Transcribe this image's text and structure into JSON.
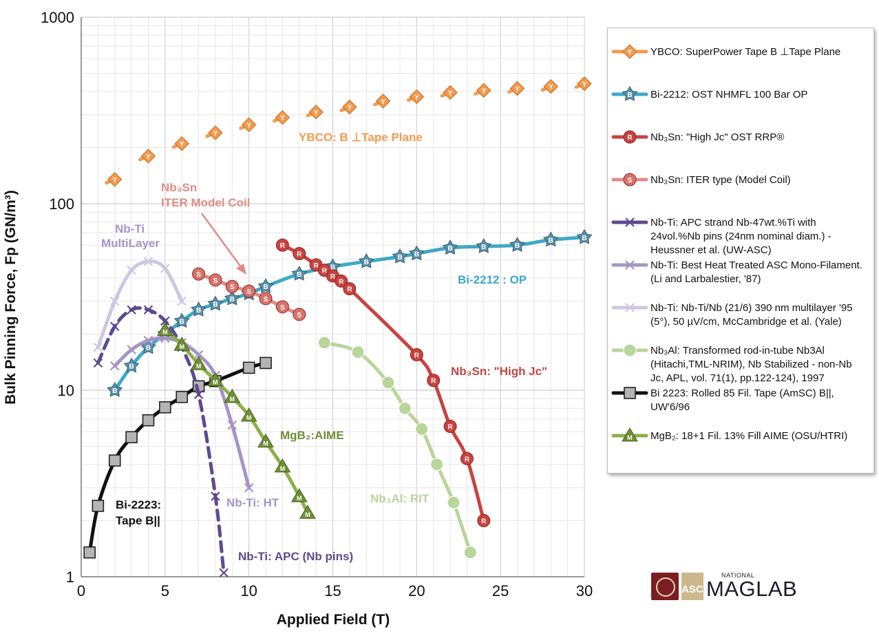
{
  "chart_data": {
    "type": "line",
    "ylabel": "Bulk Pinning Force, Fp (GN/m³)",
    "xlabel": "Applied Field (T)",
    "xlim": [
      0,
      30
    ],
    "ylim": [
      1,
      1000
    ],
    "y_scale": "log",
    "grid": true,
    "legend_position": "right",
    "x_ticks": [
      "0",
      "5",
      "10",
      "15",
      "20",
      "25",
      "30"
    ],
    "y_ticks": [
      "1",
      "10",
      "100",
      "1000"
    ],
    "series": [
      {
        "name": "YBCO: SuperPower Tape B ⊥Tape Plane",
        "color": "#f39a4e",
        "marker": "Y",
        "dashed": true,
        "x": [
          2,
          4,
          6,
          8,
          10,
          12,
          14,
          16,
          18,
          20,
          22,
          24,
          26,
          28,
          30
        ],
        "y": [
          135,
          180,
          210,
          240,
          265,
          290,
          310,
          330,
          355,
          375,
          395,
          405,
          415,
          425,
          440
        ]
      },
      {
        "name": "Bi-2212: OST NHMFL 100 Bar OP",
        "color": "#3ea9c6",
        "marker": "B",
        "dashed": false,
        "x": [
          2,
          3,
          4,
          5,
          6,
          7,
          8,
          9,
          10,
          11,
          13,
          15,
          17,
          19,
          20,
          22,
          24,
          26,
          28,
          30
        ],
        "y": [
          10,
          13.5,
          17,
          20,
          23.5,
          27,
          29,
          31,
          33,
          36,
          42,
          46,
          49,
          52,
          54,
          58,
          59,
          60,
          64,
          66
        ]
      },
      {
        "name": "Nb₃Sn: \"High Jc\" OST RRP®",
        "color": "#c8433f",
        "marker": "R",
        "dashed": false,
        "x": [
          12,
          13,
          14,
          14.5,
          15,
          15.5,
          16,
          20,
          21,
          22,
          23,
          24
        ],
        "y": [
          60,
          54,
          47,
          44,
          41,
          38.5,
          35,
          15.5,
          11.3,
          6.4,
          4.3,
          2.0
        ]
      },
      {
        "name": "Nb₃Sn: ITER type (Model Coil)",
        "color": "#e08c86",
        "marker": "S",
        "dashed": false,
        "x": [
          7,
          8,
          9,
          10,
          11,
          12,
          13
        ],
        "y": [
          42,
          39,
          36,
          34,
          31,
          28,
          25.5
        ]
      },
      {
        "name": "Nb-Ti:  APC strand Nb-47wt.%Ti with 24vol.%Nb pins (24nm nominal diam.) - Heussner et al. (UW-ASC)",
        "color": "#5e4a8e",
        "marker": "x",
        "dashed": true,
        "x": [
          1,
          2,
          3,
          4,
          5,
          6,
          7,
          8,
          8.5
        ],
        "y": [
          14,
          22,
          27,
          27,
          23.5,
          17,
          9.5,
          2.7,
          1.05
        ]
      },
      {
        "name": "Nb-Ti: Best Heat Treated ASC Mono-Filament. (Li and Larbalestier, '87)",
        "color": "#a694c6",
        "marker": "x",
        "dashed": false,
        "x": [
          2,
          3,
          4,
          5,
          6,
          7,
          8,
          9,
          10
        ],
        "y": [
          13.5,
          16.5,
          18.5,
          19,
          18,
          15.5,
          12,
          6.5,
          3.0
        ]
      },
      {
        "name": "Nb-Ti: Nb-Ti/Nb (21/6) 390 nm multilayer '95 (5°), 50 µV/cm, McCambridge et al. (Yale)",
        "color": "#cfc6e2",
        "marker": "x",
        "dashed": false,
        "x": [
          1,
          2,
          3,
          4,
          5,
          6
        ],
        "y": [
          17,
          30,
          44,
          49,
          45,
          30
        ]
      },
      {
        "name": "Nb₃Al: Transformed rod-in-tube Nb3Al (Hitachi,TML-NRIM), Nb Stabilized - non-Nb Jc, APL, vol. 71(1), pp.122-124), 1997",
        "color": "#b8d59a",
        "marker": "dot",
        "dashed": false,
        "x": [
          14.5,
          16.5,
          18.3,
          19.3,
          20.3,
          21.2,
          22.2,
          23.2
        ],
        "y": [
          18,
          16,
          11,
          8,
          6.2,
          4.0,
          2.5,
          1.35
        ]
      },
      {
        "name": "Bi 2223: Rolled 85 Fil. Tape (AmSC) B||, UW'6/96",
        "color": "#111111",
        "marker": "square",
        "dashed": false,
        "x": [
          0.5,
          1,
          2,
          3,
          4,
          5,
          6,
          7,
          8,
          10,
          11
        ],
        "y": [
          1.35,
          2.4,
          4.2,
          5.6,
          6.9,
          8.1,
          9.2,
          10.5,
          11.2,
          13.2,
          14.0
        ]
      },
      {
        "name": "MgB₂: 18+1 Fil. 13% Fill AIME (OSU/HTRI)",
        "color": "#8ab14a",
        "marker": "M",
        "dashed": false,
        "x": [
          5,
          6,
          7,
          8,
          9,
          10,
          11,
          12,
          13,
          13.5
        ],
        "y": [
          21,
          17.5,
          13.8,
          11.3,
          9.2,
          7.3,
          5.3,
          3.9,
          2.7,
          2.2
        ]
      }
    ],
    "annotations": [
      {
        "text": "YBCO: B ⊥Tape Plane",
        "color": "#f39a4e"
      },
      {
        "text": "Nb₃Sn",
        "color": "#e08c86"
      },
      {
        "text": "ITER Model Coil",
        "color": "#e08c86"
      },
      {
        "text": "Nb-Ti",
        "color": "#a694c6"
      },
      {
        "text": "MultiLayer",
        "color": "#a694c6"
      },
      {
        "text": "Bi-2212 : OP",
        "color": "#3ea9c6"
      },
      {
        "text": "Nb₃Sn: \"High Jc\"",
        "color": "#c8433f"
      },
      {
        "text": "MgB₂:AIME",
        "color": "#6f8e35"
      },
      {
        "text": "Nb₃Al: RIT",
        "color": "#b8d59a"
      },
      {
        "text": "Nb-Ti: HT",
        "color": "#a694c6"
      },
      {
        "text": "Bi-2223:",
        "color": "#111111"
      },
      {
        "text": "Tape B||",
        "color": "#111111"
      },
      {
        "text": "Nb-Ti: APC (Nb pins)",
        "color": "#5e4a8e"
      }
    ]
  },
  "logos": {
    "asc_text": "ASC",
    "national_text": "NATIONAL",
    "maglab_text": "MAGLAB"
  }
}
